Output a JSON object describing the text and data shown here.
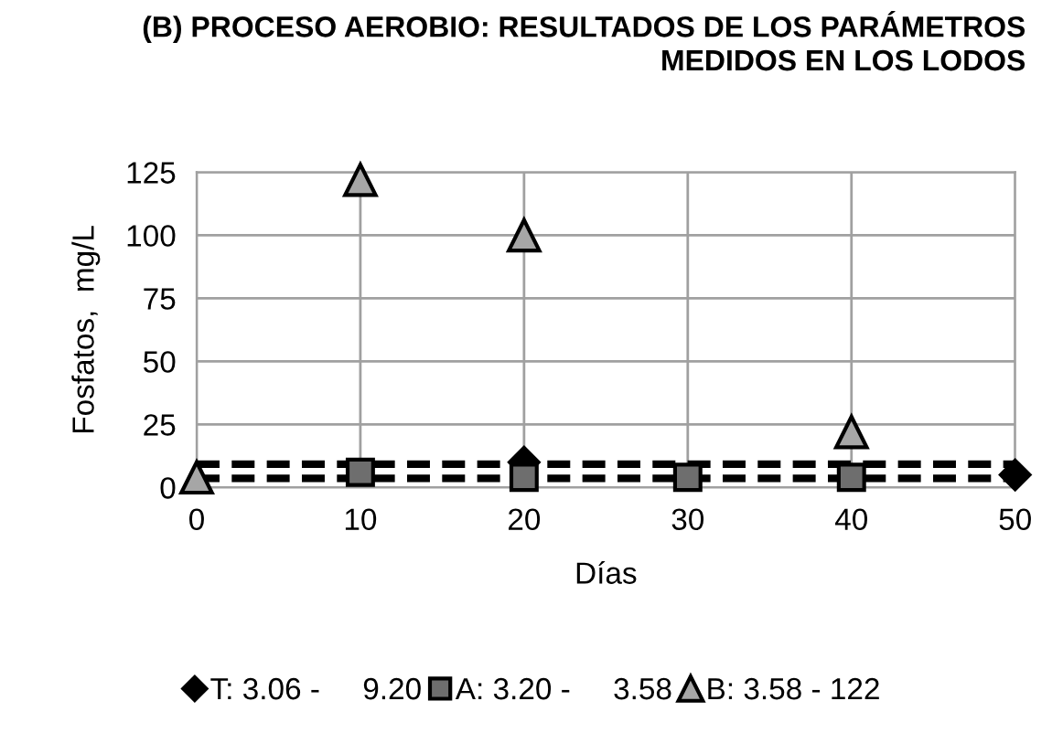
{
  "chart_data": {
    "type": "scatter",
    "title": "(B) PROCESO AEROBIO: RESULTADOS DE LOS PARÁMETROS\nMEDIDOS EN LOS LODOS",
    "xlabel": "Días",
    "ylabel": "Fosfatos,  mg/L",
    "x": [
      0,
      10,
      20,
      30,
      40,
      50
    ],
    "series": [
      {
        "name": "T: 3.06 -     9.20",
        "color": "#000000",
        "marker": "diamond",
        "values": [
          null,
          null,
          10,
          null,
          null,
          5
        ]
      },
      {
        "name": "A: 3.20 -     3.58",
        "color": "#6e6e6e",
        "marker": "square",
        "values": [
          null,
          6,
          4,
          4,
          4,
          null
        ]
      },
      {
        "name": "B: 3.58 - 122",
        "color": "#a6a6a6",
        "marker": "triangle",
        "values": [
          4,
          122,
          100,
          null,
          22,
          null
        ]
      }
    ],
    "ref_lines": [
      {
        "axis": "y",
        "value": 9.2,
        "color": "#000000",
        "line_style": "dashed"
      },
      {
        "axis": "y",
        "value": 3.58,
        "color": "#000000",
        "line_style": "dashed"
      }
    ],
    "xlim": [
      0,
      50
    ],
    "xticks": [
      0,
      10,
      20,
      30,
      40,
      50
    ],
    "ylim": [
      0,
      125
    ],
    "yticks": [
      0,
      25,
      50,
      75,
      100,
      125
    ],
    "grid": true,
    "legend": "bottom"
  }
}
